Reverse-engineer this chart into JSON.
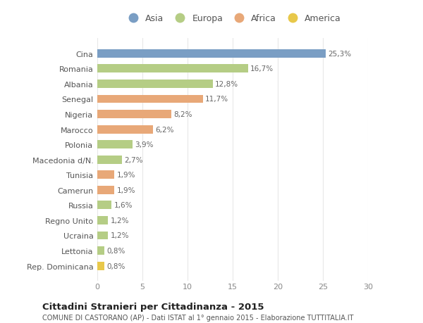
{
  "categories": [
    "Rep. Dominicana",
    "Lettonia",
    "Ucraina",
    "Regno Unito",
    "Russia",
    "Camerun",
    "Tunisia",
    "Macedonia d/N.",
    "Polonia",
    "Marocco",
    "Nigeria",
    "Senegal",
    "Albania",
    "Romania",
    "Cina"
  ],
  "values": [
    0.8,
    0.8,
    1.2,
    1.2,
    1.6,
    1.9,
    1.9,
    2.7,
    3.9,
    6.2,
    8.2,
    11.7,
    12.8,
    16.7,
    25.3
  ],
  "labels": [
    "0,8%",
    "0,8%",
    "1,2%",
    "1,2%",
    "1,6%",
    "1,9%",
    "1,9%",
    "2,7%",
    "3,9%",
    "6,2%",
    "8,2%",
    "11,7%",
    "12,8%",
    "16,7%",
    "25,3%"
  ],
  "colors": [
    "#e8c84a",
    "#b5cd85",
    "#b5cd85",
    "#b5cd85",
    "#b5cd85",
    "#e8a878",
    "#e8a878",
    "#b5cd85",
    "#b5cd85",
    "#e8a878",
    "#e8a878",
    "#e8a878",
    "#b5cd85",
    "#b5cd85",
    "#7a9ec4"
  ],
  "continent": [
    "America",
    "Europa",
    "Europa",
    "Europa",
    "Europa",
    "Africa",
    "Africa",
    "Europa",
    "Europa",
    "Africa",
    "Africa",
    "Africa",
    "Europa",
    "Europa",
    "Asia"
  ],
  "legend_labels": [
    "Asia",
    "Europa",
    "Africa",
    "America"
  ],
  "legend_colors": [
    "#7a9ec4",
    "#b5cd85",
    "#e8a878",
    "#e8c84a"
  ],
  "title_bold": "Cittadini Stranieri per Cittadinanza - 2015",
  "subtitle": "COMUNE DI CASTORANO (AP) - Dati ISTAT al 1° gennaio 2015 - Elaborazione TUTTITALIA.IT",
  "xlim": [
    0,
    30
  ],
  "xticks": [
    0,
    5,
    10,
    15,
    20,
    25,
    30
  ],
  "background_color": "#ffffff",
  "bar_background": "#ffffff",
  "grid_color": "#e8e8e8"
}
